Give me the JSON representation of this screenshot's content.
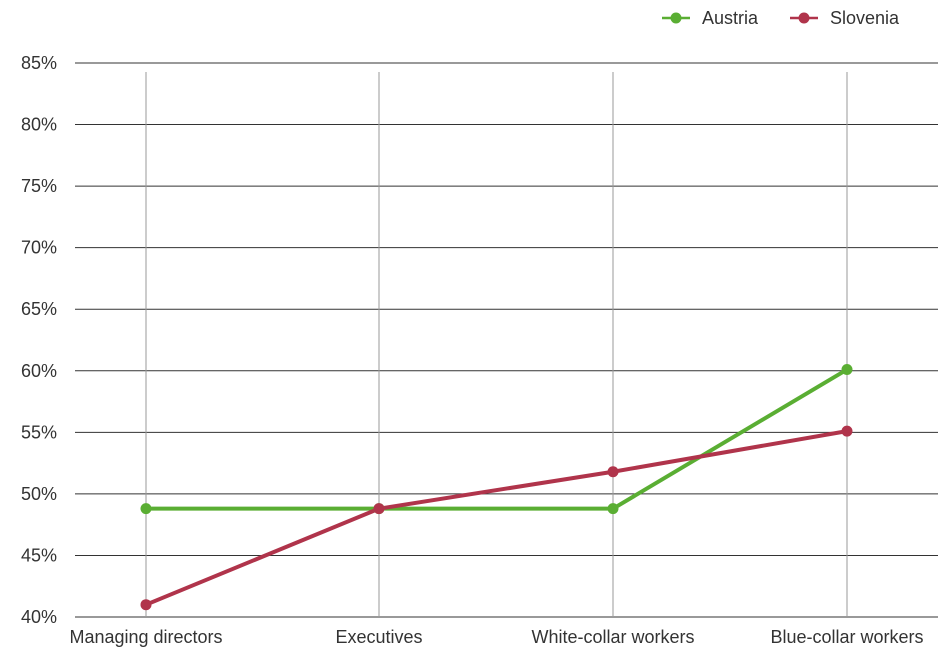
{
  "chart_data": {
    "type": "line",
    "categories": [
      "Managing directors",
      "Executives",
      "White-collar workers",
      "Blue-collar workers"
    ],
    "series": [
      {
        "name": "Austria",
        "color": "#5aae33",
        "values": [
          48.8,
          48.8,
          48.8,
          60.1
        ]
      },
      {
        "name": "Slovenia",
        "color": "#b0344b",
        "values": [
          41.0,
          48.8,
          51.8,
          55.1
        ]
      }
    ],
    "ylim": [
      40,
      85
    ],
    "yticks": [
      "40%",
      "45%",
      "50%",
      "55%",
      "60%",
      "65%",
      "70%",
      "75%",
      "80%",
      "85%"
    ],
    "grid": true,
    "legend": "top-right"
  }
}
